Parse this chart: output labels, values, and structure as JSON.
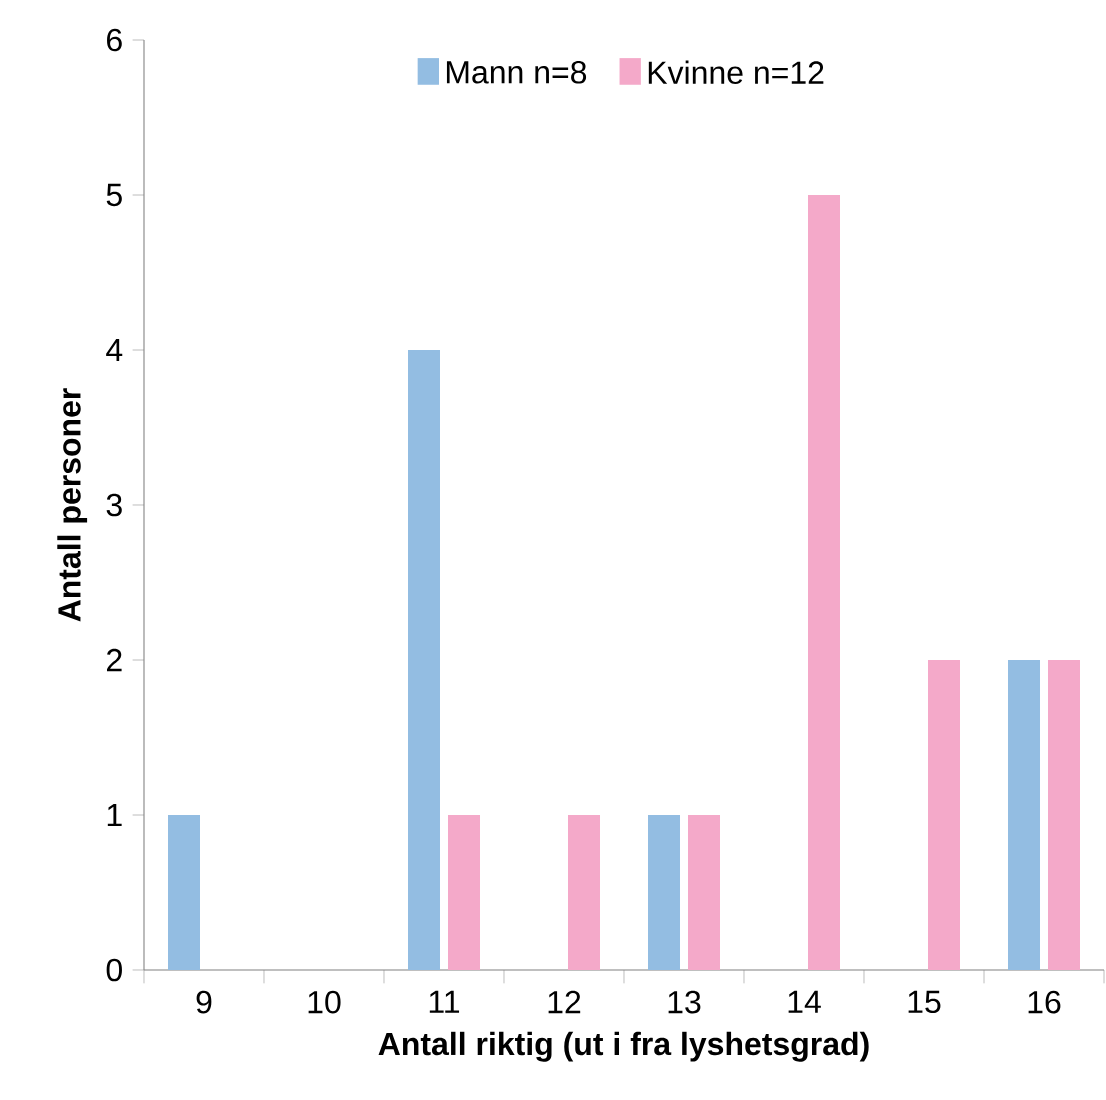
{
  "chart_data": {
    "type": "bar",
    "xlabel": "**Antall riktig (ut i fra lyshetsgrad)**",
    "ylabel": "**Antall personer**",
    "categories": [
      "9",
      "10",
      "11",
      "12",
      "13",
      "14",
      "15",
      "16"
    ],
    "series": [
      {
        "name": "Mann n=8",
        "color": "#93bde2",
        "values": [
          1,
          0,
          4,
          0,
          1,
          0,
          0,
          2
        ]
      },
      {
        "name": "Kvinne n=12",
        "color": "#f4a9c9",
        "values": [
          0,
          0,
          1,
          1,
          1,
          5,
          2,
          2
        ]
      }
    ],
    "ylim": [
      0,
      6
    ],
    "yticks": [
      0,
      1,
      2,
      3,
      4,
      5,
      6
    ],
    "grid": false,
    "legend": "top"
  }
}
